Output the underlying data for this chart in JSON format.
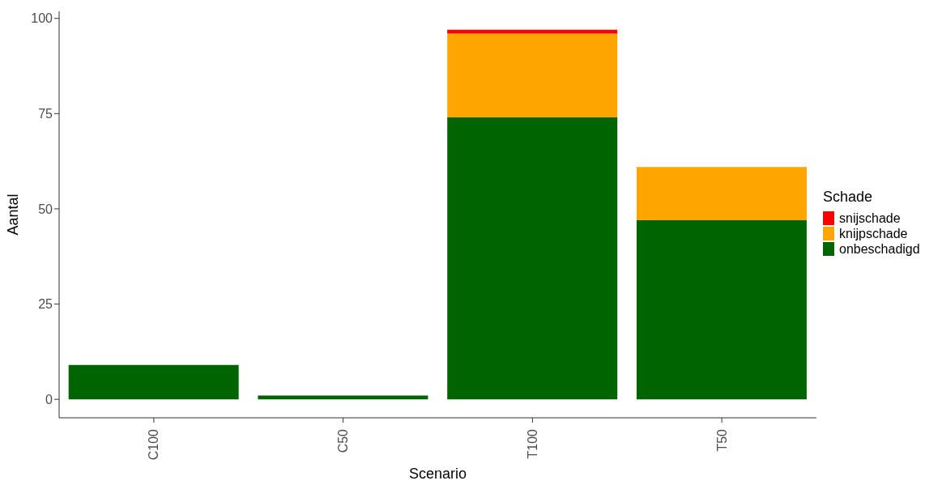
{
  "chart_data": {
    "type": "bar",
    "xlabel": "Scenario",
    "ylabel": "Aantal",
    "legend_title": "Schade",
    "categories": [
      "C100",
      "C50",
      "T100",
      "T50"
    ],
    "stacked": true,
    "series": [
      {
        "name": "onbeschadigd",
        "color": "#006400",
        "values": [
          9,
          1,
          74,
          47
        ]
      },
      {
        "name": "knijpschade",
        "color": "#ffa500",
        "values": [
          null,
          null,
          22,
          14
        ]
      },
      {
        "name": "snijschade",
        "color": "#ff0000",
        "values": [
          null,
          null,
          1,
          null
        ]
      }
    ],
    "ylim": [
      -4.85,
      101.85
    ],
    "yticks": [
      0,
      25,
      50,
      75,
      100
    ],
    "grid": false,
    "legend": "right"
  }
}
